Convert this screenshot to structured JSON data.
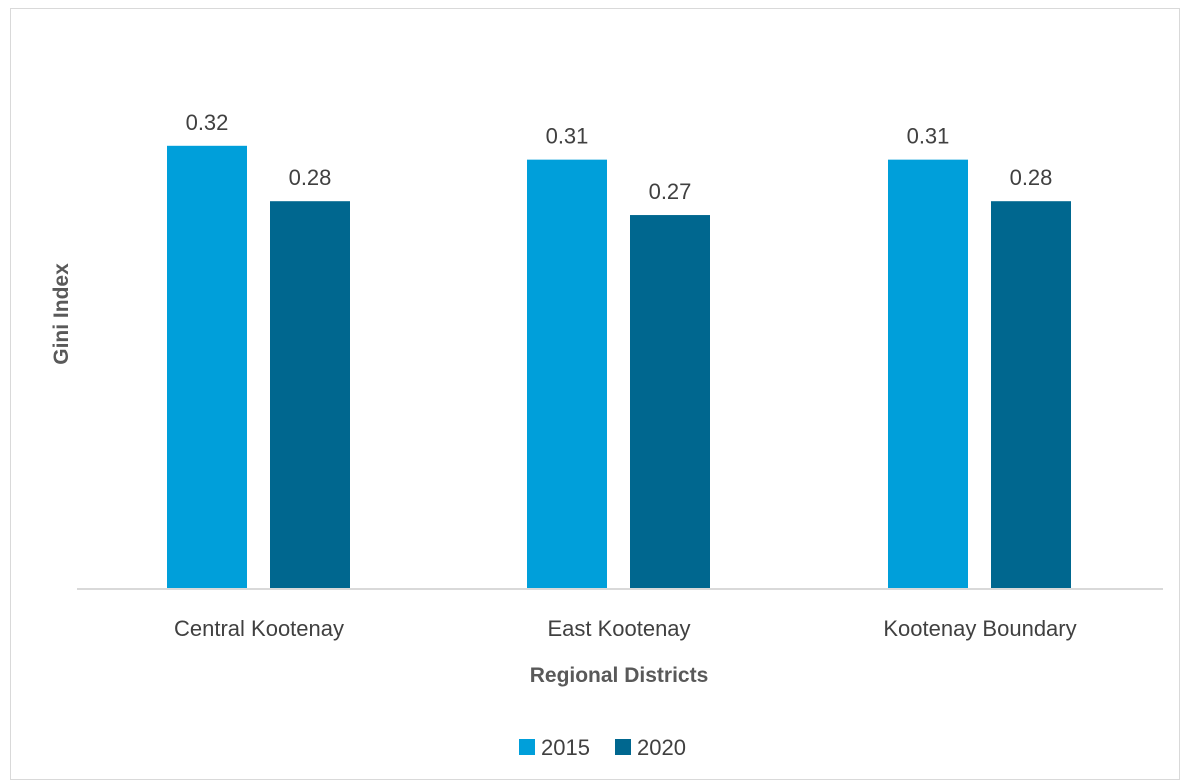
{
  "chart_data": {
    "type": "bar",
    "title": "",
    "xlabel": "Regional Districts",
    "ylabel": "Gini Index",
    "categories": [
      "Central Kootenay",
      "East Kootenay",
      "Kootenay Boundary"
    ],
    "series": [
      {
        "name": "2015",
        "values": [
          0.32,
          0.31,
          0.31
        ],
        "color": "#009FDA"
      },
      {
        "name": "2020",
        "values": [
          0.28,
          0.27,
          0.28
        ],
        "color": "#00678F"
      }
    ],
    "ylim": [
      0,
      0.32
    ],
    "grid": false,
    "legend_position": "bottom",
    "data_labels": [
      "0.32",
      "0.28",
      "0.31",
      "0.27",
      "0.31",
      "0.28"
    ]
  }
}
